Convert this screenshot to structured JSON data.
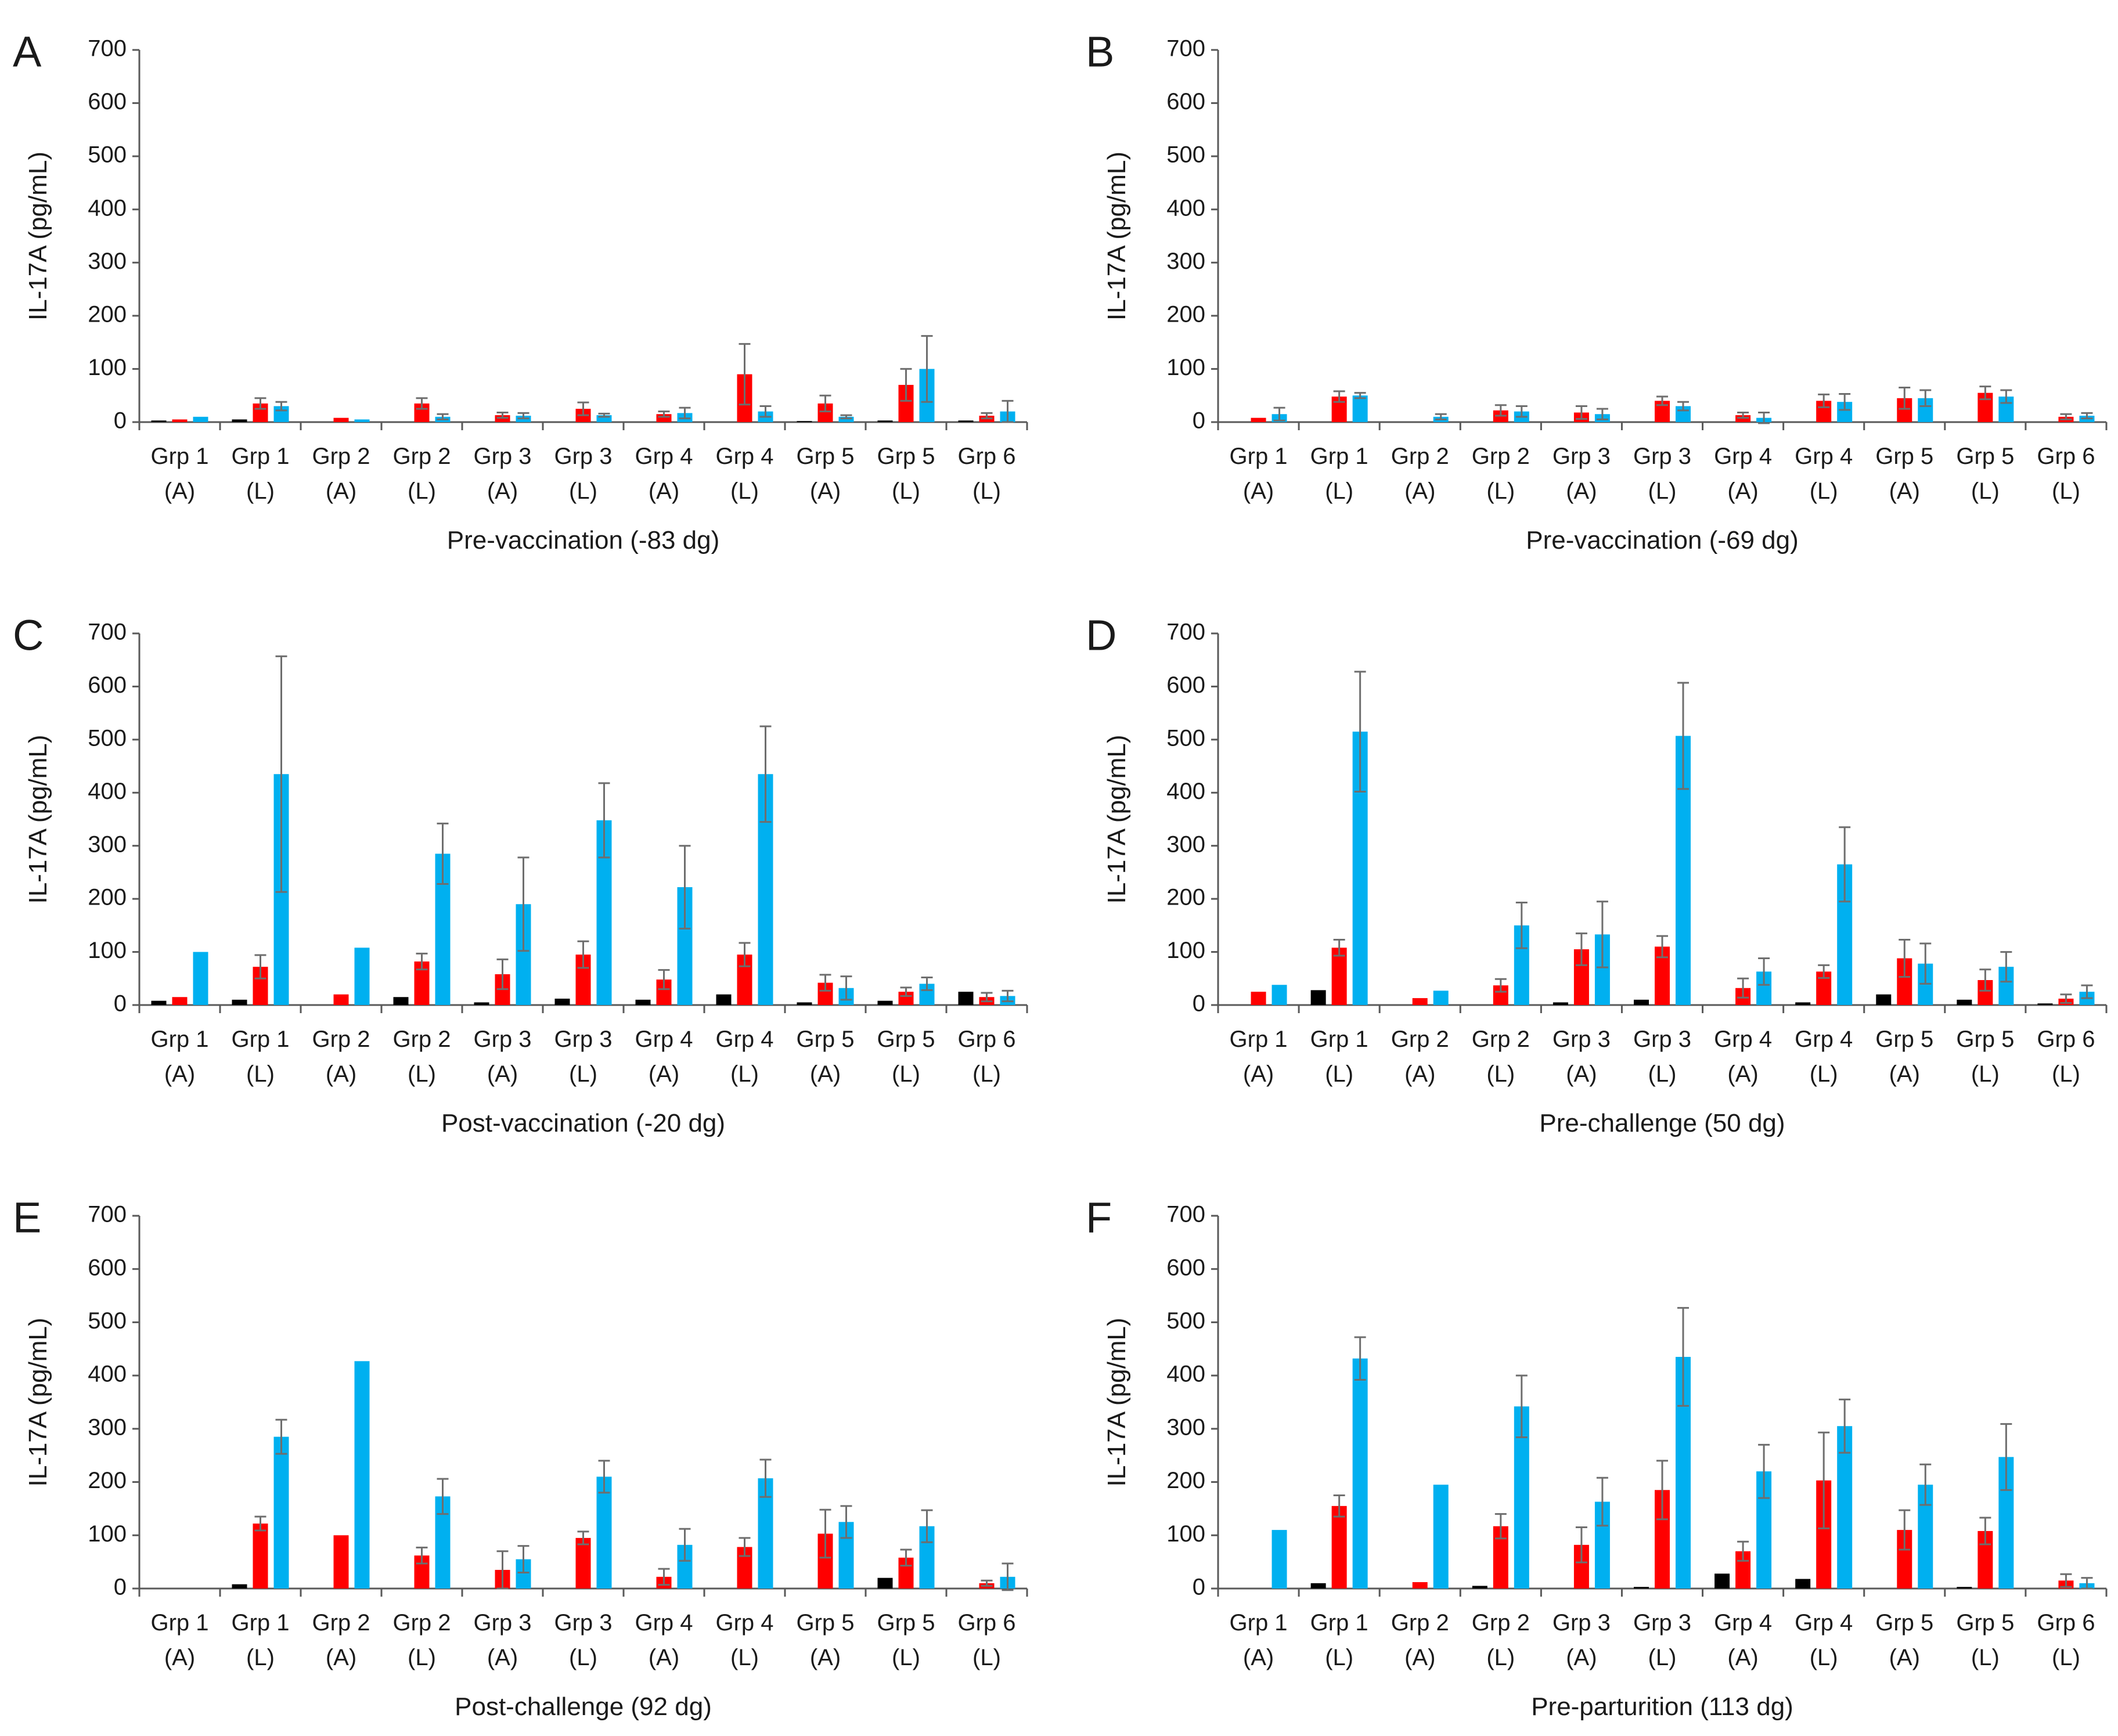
{
  "figure": {
    "ylabel": "IL-17A (pg/mL)",
    "yticks": [
      "0",
      "100",
      "200",
      "300",
      "400",
      "500",
      "600",
      "700"
    ]
  },
  "colors": {
    "black": "#000000",
    "red": "#ff0000",
    "blue": "#00b0f0",
    "axis": "#595959",
    "errorbar": "#6e6e6e"
  },
  "chart_data": [
    {
      "panel": "A",
      "type": "bar",
      "title": "",
      "xlabel": "Pre-vaccination (-83 dg)",
      "ylabel": "IL-17A (pg/mL)",
      "ylim": [
        0,
        700
      ],
      "categories": [
        [
          "Grp 1",
          "(A)"
        ],
        [
          "Grp 1",
          "(L)"
        ],
        [
          "Grp 2",
          "(A)"
        ],
        [
          "Grp 2",
          "(L)"
        ],
        [
          "Grp 3",
          "(A)"
        ],
        [
          "Grp 3",
          "(L)"
        ],
        [
          "Grp 4",
          "(A)"
        ],
        [
          "Grp 4",
          "(L)"
        ],
        [
          "Grp 5",
          "(A)"
        ],
        [
          "Grp 5",
          "(L)"
        ],
        [
          "Grp 6",
          "(L)"
        ]
      ],
      "series": [
        {
          "color": "black",
          "values": [
            3,
            5,
            0,
            0,
            0,
            0,
            0,
            0,
            2,
            3,
            3
          ],
          "errors": [
            0,
            0,
            0,
            0,
            0,
            0,
            0,
            0,
            0,
            0,
            0
          ]
        },
        {
          "color": "red",
          "values": [
            5,
            35,
            8,
            35,
            13,
            25,
            15,
            90,
            35,
            70,
            12
          ],
          "errors": [
            0,
            10,
            0,
            10,
            5,
            12,
            5,
            57,
            15,
            30,
            5
          ]
        },
        {
          "color": "blue",
          "values": [
            10,
            30,
            5,
            10,
            12,
            13,
            17,
            20,
            10,
            100,
            20
          ],
          "errors": [
            0,
            8,
            0,
            5,
            5,
            3,
            10,
            10,
            3,
            62,
            20
          ]
        }
      ]
    },
    {
      "panel": "B",
      "type": "bar",
      "title": "",
      "xlabel": "Pre-vaccination (-69 dg)",
      "ylabel": "IL-17A (pg/mL)",
      "ylim": [
        0,
        700
      ],
      "categories": [
        [
          "Grp 1",
          "(A)"
        ],
        [
          "Grp 1",
          "(L)"
        ],
        [
          "Grp 2",
          "(A)"
        ],
        [
          "Grp 2",
          "(L)"
        ],
        [
          "Grp 3",
          "(A)"
        ],
        [
          "Grp 3",
          "(L)"
        ],
        [
          "Grp 4",
          "(A)"
        ],
        [
          "Grp 4",
          "(L)"
        ],
        [
          "Grp 5",
          "(A)"
        ],
        [
          "Grp 5",
          "(L)"
        ],
        [
          "Grp 6",
          "(L)"
        ]
      ],
      "series": [
        {
          "color": "black",
          "values": [
            0,
            0,
            0,
            0,
            0,
            0,
            0,
            0,
            0,
            0,
            0
          ],
          "errors": [
            0,
            0,
            0,
            0,
            0,
            0,
            0,
            0,
            0,
            0,
            0
          ]
        },
        {
          "color": "red",
          "values": [
            8,
            48,
            0,
            22,
            18,
            40,
            13,
            40,
            45,
            55,
            10
          ],
          "errors": [
            0,
            10,
            0,
            10,
            12,
            8,
            5,
            12,
            20,
            12,
            5
          ]
        },
        {
          "color": "blue",
          "values": [
            15,
            50,
            10,
            20,
            15,
            30,
            8,
            38,
            45,
            48,
            12
          ],
          "errors": [
            12,
            5,
            5,
            10,
            10,
            8,
            10,
            15,
            15,
            12,
            5
          ]
        }
      ]
    },
    {
      "panel": "C",
      "type": "bar",
      "title": "",
      "xlabel": "Post-vaccination (-20 dg)",
      "ylabel": "IL-17A (pg/mL)",
      "ylim": [
        0,
        700
      ],
      "categories": [
        [
          "Grp 1",
          "(A)"
        ],
        [
          "Grp 1",
          "(L)"
        ],
        [
          "Grp 2",
          "(A)"
        ],
        [
          "Grp 2",
          "(L)"
        ],
        [
          "Grp 3",
          "(A)"
        ],
        [
          "Grp 3",
          "(L)"
        ],
        [
          "Grp 4",
          "(A)"
        ],
        [
          "Grp 4",
          "(L)"
        ],
        [
          "Grp 5",
          "(A)"
        ],
        [
          "Grp 5",
          "(L)"
        ],
        [
          "Grp 6",
          "(L)"
        ]
      ],
      "series": [
        {
          "color": "black",
          "values": [
            8,
            10,
            0,
            15,
            5,
            12,
            10,
            20,
            5,
            8,
            25
          ],
          "errors": [
            0,
            0,
            0,
            0,
            0,
            0,
            0,
            0,
            0,
            0,
            0
          ]
        },
        {
          "color": "red",
          "values": [
            15,
            72,
            20,
            82,
            58,
            95,
            48,
            95,
            42,
            25,
            15
          ],
          "errors": [
            0,
            22,
            0,
            15,
            28,
            25,
            18,
            22,
            15,
            8,
            8
          ]
        },
        {
          "color": "blue",
          "values": [
            100,
            435,
            108,
            285,
            190,
            348,
            222,
            435,
            32,
            40,
            17
          ],
          "errors": [
            0,
            222,
            0,
            57,
            88,
            70,
            78,
            90,
            22,
            12,
            10
          ]
        }
      ]
    },
    {
      "panel": "D",
      "type": "bar",
      "title": "",
      "xlabel": "Pre-challenge (50 dg)",
      "ylabel": "IL-17A (pg/mL)",
      "ylim": [
        0,
        700
      ],
      "categories": [
        [
          "Grp 1",
          "(A)"
        ],
        [
          "Grp 1",
          "(L)"
        ],
        [
          "Grp 2",
          "(A)"
        ],
        [
          "Grp 2",
          "(L)"
        ],
        [
          "Grp 3",
          "(A)"
        ],
        [
          "Grp 3",
          "(L)"
        ],
        [
          "Grp 4",
          "(A)"
        ],
        [
          "Grp 4",
          "(L)"
        ],
        [
          "Grp 5",
          "(A)"
        ],
        [
          "Grp 5",
          "(L)"
        ],
        [
          "Grp 6",
          "(L)"
        ]
      ],
      "series": [
        {
          "color": "black",
          "values": [
            0,
            28,
            0,
            0,
            5,
            10,
            0,
            5,
            20,
            10,
            3
          ],
          "errors": [
            0,
            0,
            0,
            0,
            0,
            0,
            0,
            0,
            0,
            0,
            0
          ]
        },
        {
          "color": "red",
          "values": [
            25,
            108,
            13,
            37,
            105,
            110,
            32,
            63,
            88,
            47,
            12
          ],
          "errors": [
            0,
            15,
            0,
            12,
            30,
            20,
            18,
            12,
            35,
            20,
            8
          ]
        },
        {
          "color": "blue",
          "values": [
            38,
            515,
            27,
            150,
            133,
            507,
            63,
            265,
            78,
            72,
            25
          ],
          "errors": [
            0,
            113,
            0,
            43,
            62,
            100,
            25,
            70,
            38,
            28,
            12
          ]
        }
      ]
    },
    {
      "panel": "E",
      "type": "bar",
      "title": "",
      "xlabel": "Post-challenge (92 dg)",
      "ylabel": "IL-17A (pg/mL)",
      "ylim": [
        0,
        700
      ],
      "categories": [
        [
          "Grp 1",
          "(A)"
        ],
        [
          "Grp 1",
          "(L)"
        ],
        [
          "Grp 2",
          "(A)"
        ],
        [
          "Grp 2",
          "(L)"
        ],
        [
          "Grp 3",
          "(A)"
        ],
        [
          "Grp 3",
          "(L)"
        ],
        [
          "Grp 4",
          "(A)"
        ],
        [
          "Grp 4",
          "(L)"
        ],
        [
          "Grp 5",
          "(A)"
        ],
        [
          "Grp 5",
          "(L)"
        ],
        [
          "Grp 6",
          "(L)"
        ]
      ],
      "series": [
        {
          "color": "black",
          "values": [
            0,
            8,
            0,
            0,
            0,
            0,
            0,
            0,
            0,
            20,
            0
          ],
          "errors": [
            0,
            0,
            0,
            0,
            0,
            0,
            0,
            0,
            0,
            0,
            0
          ]
        },
        {
          "color": "red",
          "values": [
            0,
            122,
            100,
            62,
            35,
            95,
            22,
            78,
            103,
            58,
            10
          ],
          "errors": [
            0,
            13,
            0,
            15,
            35,
            12,
            15,
            17,
            45,
            15,
            5
          ]
        },
        {
          "color": "blue",
          "values": [
            0,
            285,
            427,
            173,
            55,
            210,
            82,
            207,
            125,
            117,
            22
          ],
          "errors": [
            0,
            32,
            0,
            33,
            25,
            30,
            30,
            35,
            30,
            30,
            25
          ]
        }
      ]
    },
    {
      "panel": "F",
      "type": "bar",
      "title": "",
      "xlabel": "Pre-parturition (113 dg)",
      "ylabel": "IL-17A (pg/mL)",
      "ylim": [
        0,
        700
      ],
      "categories": [
        [
          "Grp 1",
          "(A)"
        ],
        [
          "Grp 1",
          "(L)"
        ],
        [
          "Grp 2",
          "(A)"
        ],
        [
          "Grp 2",
          "(L)"
        ],
        [
          "Grp 3",
          "(A)"
        ],
        [
          "Grp 3",
          "(L)"
        ],
        [
          "Grp 4",
          "(A)"
        ],
        [
          "Grp 4",
          "(L)"
        ],
        [
          "Grp 5",
          "(A)"
        ],
        [
          "Grp 5",
          "(L)"
        ],
        [
          "Grp 6",
          "(L)"
        ]
      ],
      "series": [
        {
          "color": "black",
          "values": [
            0,
            10,
            0,
            5,
            0,
            3,
            28,
            18,
            0,
            3,
            0
          ],
          "errors": [
            0,
            0,
            0,
            0,
            0,
            0,
            0,
            0,
            0,
            0,
            0
          ]
        },
        {
          "color": "red",
          "values": [
            0,
            155,
            12,
            117,
            82,
            185,
            70,
            203,
            110,
            108,
            15
          ],
          "errors": [
            0,
            20,
            0,
            23,
            33,
            55,
            18,
            90,
            37,
            25,
            12
          ]
        },
        {
          "color": "blue",
          "values": [
            110,
            432,
            195,
            342,
            163,
            435,
            220,
            305,
            195,
            247,
            10
          ],
          "errors": [
            0,
            40,
            0,
            58,
            45,
            92,
            50,
            50,
            38,
            62,
            10
          ]
        }
      ]
    }
  ]
}
